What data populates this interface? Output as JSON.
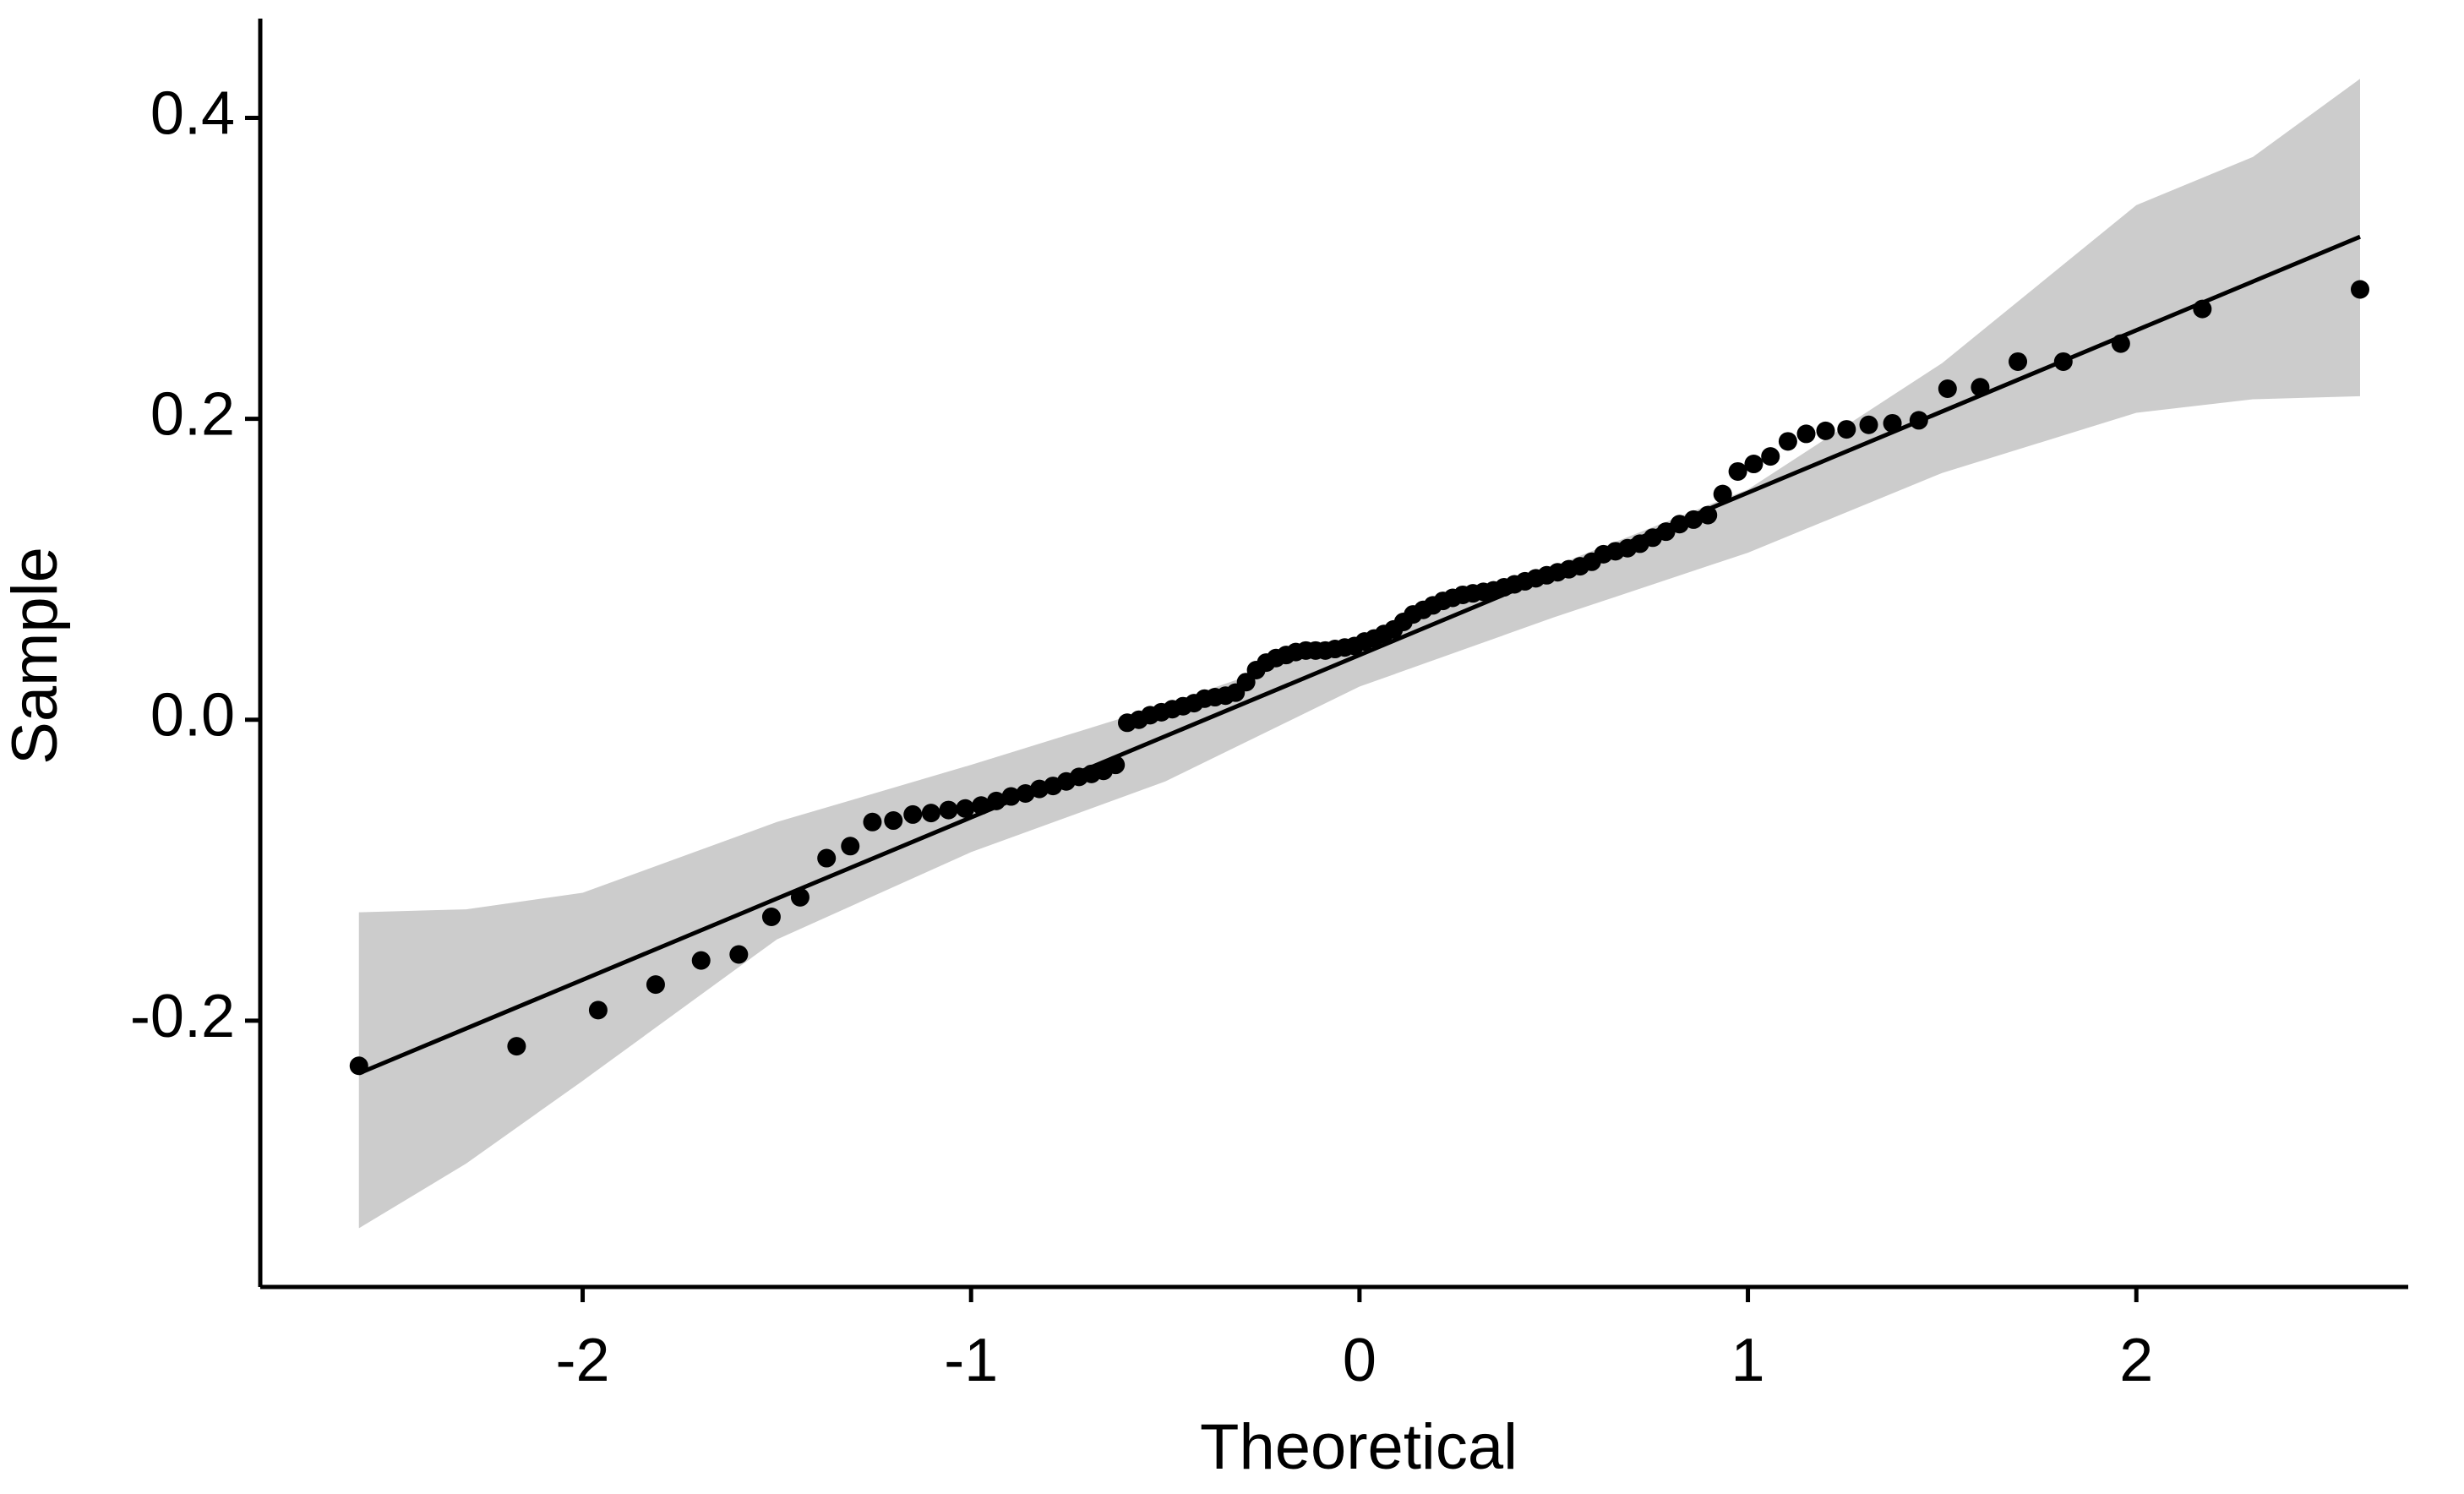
{
  "chart_data": {
    "type": "scatter",
    "x_label": "Theoretical",
    "y_label": "Sample",
    "color": "#000000",
    "x": [
      -2.576,
      -2.17,
      -1.96,
      -1.812,
      -1.695,
      -1.598,
      -1.514,
      -1.44,
      -1.372,
      -1.311,
      -1.254,
      -1.2,
      -1.15,
      -1.103,
      -1.058,
      -1.015,
      -0.974,
      -0.935,
      -0.897,
      -0.86,
      -0.824,
      -0.789,
      -0.755,
      -0.722,
      -0.69,
      -0.659,
      -0.628,
      -0.598,
      -0.568,
      -0.539,
      -0.51,
      -0.482,
      -0.454,
      -0.426,
      -0.399,
      -0.372,
      -0.345,
      -0.319,
      -0.292,
      -0.266,
      -0.24,
      -0.215,
      -0.189,
      -0.164,
      -0.138,
      -0.113,
      -0.088,
      -0.063,
      -0.038,
      -0.013,
      0.013,
      0.038,
      0.063,
      0.088,
      0.113,
      0.138,
      0.164,
      0.189,
      0.215,
      0.24,
      0.266,
      0.292,
      0.319,
      0.345,
      0.372,
      0.399,
      0.426,
      0.454,
      0.482,
      0.51,
      0.539,
      0.568,
      0.598,
      0.628,
      0.659,
      0.69,
      0.722,
      0.755,
      0.789,
      0.824,
      0.86,
      0.897,
      0.935,
      0.974,
      1.015,
      1.058,
      1.103,
      1.15,
      1.2,
      1.254,
      1.311,
      1.372,
      1.44,
      1.514,
      1.598,
      1.695,
      1.812,
      1.96,
      2.17,
      2.576
    ],
    "values": [
      -0.23,
      -0.217,
      -0.193,
      -0.176,
      -0.16,
      -0.156,
      -0.131,
      -0.118,
      -0.092,
      -0.084,
      -0.068,
      -0.067,
      -0.063,
      -0.062,
      -0.06,
      -0.059,
      -0.057,
      -0.054,
      -0.051,
      -0.049,
      -0.046,
      -0.044,
      -0.041,
      -0.038,
      -0.036,
      -0.034,
      -0.03,
      -0.002,
      0.0,
      0.003,
      0.005,
      0.007,
      0.009,
      0.011,
      0.014,
      0.015,
      0.016,
      0.018,
      0.025,
      0.033,
      0.038,
      0.041,
      0.043,
      0.045,
      0.046,
      0.046,
      0.046,
      0.047,
      0.048,
      0.049,
      0.052,
      0.054,
      0.057,
      0.06,
      0.065,
      0.07,
      0.073,
      0.076,
      0.079,
      0.081,
      0.083,
      0.084,
      0.085,
      0.086,
      0.088,
      0.09,
      0.092,
      0.094,
      0.096,
      0.098,
      0.1,
      0.102,
      0.105,
      0.11,
      0.112,
      0.114,
      0.117,
      0.121,
      0.125,
      0.13,
      0.133,
      0.136,
      0.15,
      0.165,
      0.17,
      0.175,
      0.185,
      0.19,
      0.192,
      0.193,
      0.196,
      0.197,
      0.199,
      0.22,
      0.221,
      0.238,
      0.238,
      0.25,
      0.273,
      0.286
    ],
    "fit": {
      "x": [
        -2.576,
        2.576
      ],
      "y": [
        -0.235,
        0.321
      ],
      "color": "#000000"
    },
    "band": {
      "color": "#cccccc",
      "x": [
        -2.576,
        -2.3,
        -2.0,
        -1.5,
        -1.0,
        -0.5,
        0,
        0.5,
        1.0,
        1.5,
        2.0,
        2.3,
        2.576
      ],
      "upper": [
        -0.128,
        -0.126,
        -0.115,
        -0.068,
        -0.03,
        0.01,
        0.055,
        0.102,
        0.153,
        0.237,
        0.342,
        0.374,
        0.426
      ],
      "lower": [
        -0.338,
        -0.295,
        -0.24,
        -0.146,
        -0.088,
        -0.041,
        0.022,
        0.068,
        0.111,
        0.164,
        0.204,
        0.213,
        0.215
      ]
    },
    "xlim": [
      -2.83,
      2.7
    ],
    "ylim": [
      -0.377,
      0.466
    ],
    "xticks": [
      -2,
      -1,
      0,
      1,
      2
    ],
    "yticks": [
      -0.2,
      {
        "value": 0,
        "label": "0.0"
      },
      0.2,
      0.4
    ],
    "grid": false
  }
}
